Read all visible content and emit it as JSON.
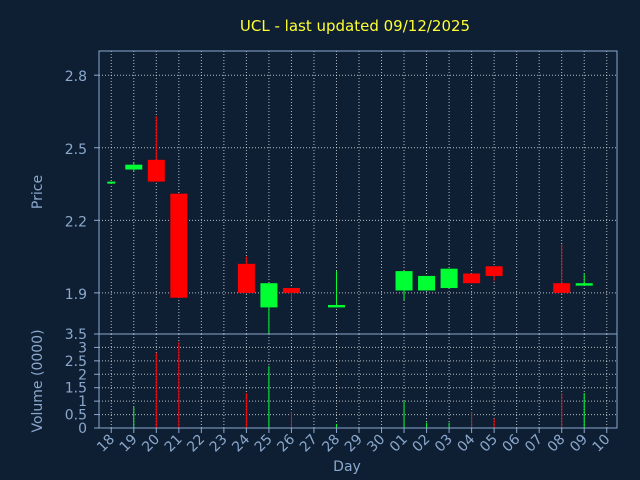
{
  "title": "UCL - last updated 09/12/2025",
  "colors": {
    "background": "#0f1f33",
    "plot_border": "#8aa8cc",
    "grid": "#ffffff",
    "up": "#00ff33",
    "down": "#ff0000",
    "text": "#8aa8cc",
    "title": "#ffff33"
  },
  "chart_data": [
    {
      "type": "candlestick",
      "ylabel": "Price",
      "ylim": [
        1.73,
        2.9
      ],
      "y_ticks": [
        "1.9",
        "2.2",
        "2.5",
        "2.8"
      ],
      "grid": true,
      "days": [
        "18",
        "19",
        "20",
        "21",
        "22",
        "23",
        "24",
        "25",
        "26",
        "27",
        "28",
        "29",
        "30",
        "01",
        "02",
        "03",
        "04",
        "05",
        "06",
        "07",
        "08",
        "09",
        "10"
      ],
      "candles": [
        {
          "day": "18",
          "open": 2.36,
          "close": 2.36,
          "high": 2.36,
          "low": 2.36
        },
        {
          "day": "19",
          "open": 2.41,
          "close": 2.43,
          "high": 2.44,
          "low": 2.4
        },
        {
          "day": "20",
          "open": 2.45,
          "close": 2.36,
          "high": 2.63,
          "low": 2.36
        },
        {
          "day": "21",
          "open": 2.31,
          "close": 1.88,
          "high": 2.31,
          "low": 1.88
        },
        {
          "day": "24",
          "open": 2.02,
          "close": 1.9,
          "high": 2.05,
          "low": 1.9
        },
        {
          "day": "25",
          "open": 1.84,
          "close": 1.94,
          "high": 1.94,
          "low": 1.73
        },
        {
          "day": "26",
          "open": 1.92,
          "close": 1.9,
          "high": 1.92,
          "low": 1.87
        },
        {
          "day": "28",
          "open": 1.84,
          "close": 1.85,
          "high": 1.99,
          "low": 1.84
        },
        {
          "day": "01",
          "open": 1.91,
          "close": 1.99,
          "high": 1.99,
          "low": 1.87
        },
        {
          "day": "02",
          "open": 1.91,
          "close": 1.97,
          "high": 1.97,
          "low": 1.91
        },
        {
          "day": "03",
          "open": 1.92,
          "close": 2.0,
          "high": 2.0,
          "low": 1.92
        },
        {
          "day": "04",
          "open": 1.98,
          "close": 1.94,
          "high": 1.98,
          "low": 1.94
        },
        {
          "day": "05",
          "open": 2.01,
          "close": 1.97,
          "high": 2.01,
          "low": 1.95
        },
        {
          "day": "08",
          "open": 1.94,
          "close": 1.9,
          "high": 2.1,
          "low": 1.9
        },
        {
          "day": "09",
          "open": 1.93,
          "close": 1.94,
          "high": 1.98,
          "low": 1.93
        }
      ]
    },
    {
      "type": "bar",
      "ylabel": "Volume (0000)",
      "ylim": [
        0,
        3.5
      ],
      "y_ticks": [
        "0",
        "0.5",
        "1",
        "1.5",
        "2",
        "2.5",
        "3",
        "3.5"
      ],
      "xlabel": "Day",
      "categories": [
        "18",
        "19",
        "20",
        "21",
        "22",
        "23",
        "24",
        "25",
        "26",
        "27",
        "28",
        "29",
        "30",
        "01",
        "02",
        "03",
        "04",
        "05",
        "06",
        "07",
        "08",
        "09",
        "10"
      ],
      "bars": [
        {
          "day": "18",
          "value": 0,
          "direction": "flat"
        },
        {
          "day": "19",
          "value": 0.8,
          "direction": "up"
        },
        {
          "day": "20",
          "value": 2.8,
          "direction": "down"
        },
        {
          "day": "21",
          "value": 3.2,
          "direction": "down"
        },
        {
          "day": "24",
          "value": 1.3,
          "direction": "down"
        },
        {
          "day": "25",
          "value": 2.3,
          "direction": "up"
        },
        {
          "day": "26",
          "value": 0.6,
          "direction": "down"
        },
        {
          "day": "28",
          "value": 0.15,
          "direction": "up"
        },
        {
          "day": "01",
          "value": 1.0,
          "direction": "up"
        },
        {
          "day": "02",
          "value": 0.2,
          "direction": "up"
        },
        {
          "day": "03",
          "value": 0.2,
          "direction": "up"
        },
        {
          "day": "04",
          "value": 0.6,
          "direction": "down"
        },
        {
          "day": "05",
          "value": 0.35,
          "direction": "down"
        },
        {
          "day": "08",
          "value": 1.3,
          "direction": "down"
        },
        {
          "day": "09",
          "value": 1.3,
          "direction": "up"
        }
      ]
    }
  ]
}
